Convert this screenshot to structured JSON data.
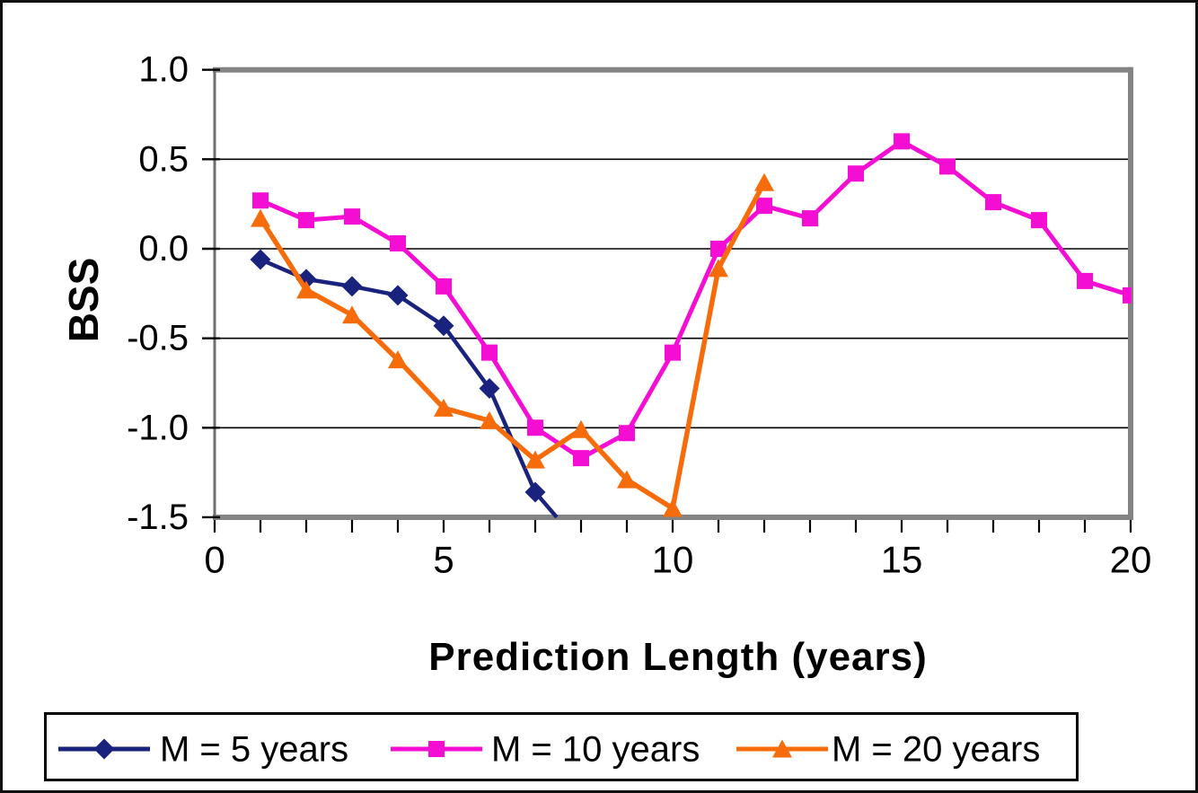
{
  "chart_data": {
    "type": "line",
    "title": "",
    "xlabel": "Prediction Length (years)",
    "ylabel": "BSS",
    "xlim": [
      0,
      20
    ],
    "ylim": [
      -1.5,
      1.0
    ],
    "x_major_ticks": [
      0,
      5,
      10,
      15,
      20
    ],
    "x_minor_tick_step": 1,
    "y_ticks": [
      1.0,
      0.5,
      0.0,
      -0.5,
      -1.0,
      -1.5
    ],
    "y_tick_labels": [
      "1.0",
      "0.5",
      "0.0",
      "-0.5",
      "-1.0",
      "-1.5"
    ],
    "grid_y_values": [
      0.5,
      0.0,
      -0.5,
      -1.0
    ],
    "grid": "horizontal",
    "legend_position": "bottom",
    "plot_border_color": "#848484",
    "gridline_color": "#000000",
    "series": [
      {
        "name": "M = 5 years",
        "marker": "diamond",
        "color": "#19237D",
        "x": [
          1,
          2,
          3,
          4,
          5,
          6,
          7
        ],
        "values": [
          -0.06,
          -0.17,
          -0.21,
          -0.26,
          -0.43,
          -0.78,
          -1.36
        ],
        "line_exit": {
          "x": 7.47,
          "y": -1.5
        }
      },
      {
        "name": "M = 10 years",
        "marker": "square",
        "color": "#F40DD3",
        "x": [
          1,
          2,
          3,
          4,
          5,
          6,
          7,
          8,
          9,
          10,
          11,
          12,
          13,
          14,
          15,
          16,
          17,
          18,
          19,
          20
        ],
        "values": [
          0.27,
          0.16,
          0.18,
          0.03,
          -0.21,
          -0.58,
          -1.0,
          -1.17,
          -1.03,
          -0.58,
          0.0,
          0.24,
          0.17,
          0.42,
          0.6,
          0.46,
          0.26,
          0.16,
          -0.18,
          -0.26
        ]
      },
      {
        "name": "M = 20 years",
        "marker": "triangle",
        "color": "#F76C0A",
        "x": [
          1,
          2,
          3,
          4,
          5,
          6,
          7,
          8,
          9,
          10,
          11,
          12
        ],
        "values": [
          0.17,
          -0.23,
          -0.37,
          -0.62,
          -0.89,
          -0.96,
          -1.18,
          -1.01,
          -1.29,
          -1.45,
          -0.11,
          0.37
        ]
      }
    ]
  }
}
